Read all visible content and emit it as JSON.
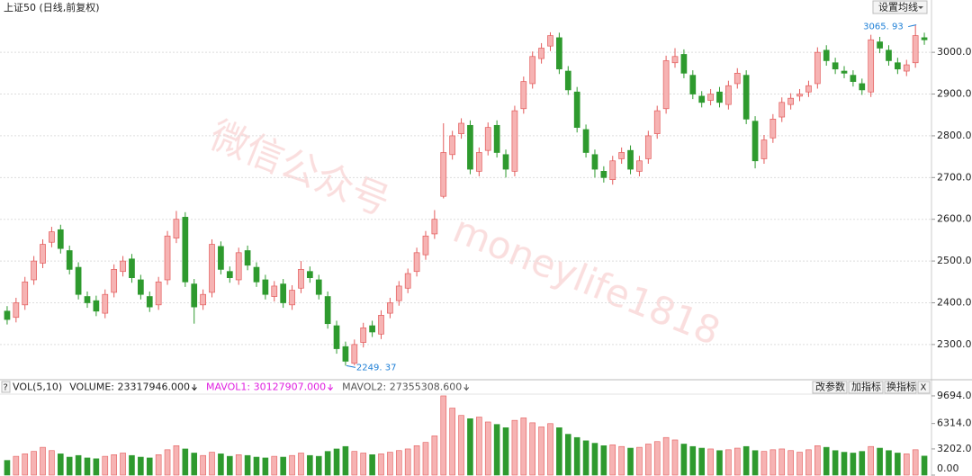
{
  "ui": {
    "ma_button": "设置均线",
    "buttons": [
      "改参数",
      "加指标",
      "换指标"
    ],
    "close": "X",
    "help": "?",
    "watermark": [
      "微信公众号",
      "moneylife1818"
    ]
  },
  "chart_data": [
    {
      "type": "candlestick",
      "title": "上证50 (日线,前复权)",
      "up_color": "#e35b5b",
      "down_color": "#2e9a2e",
      "grid": true,
      "ylim": [
        2220,
        3093
      ],
      "yticks": [
        {
          "value": 2300,
          "label": "2300.00"
        },
        {
          "value": 2400,
          "label": "2400.00"
        },
        {
          "value": 2500,
          "label": "2500.00"
        },
        {
          "value": 2600,
          "label": "2600.00"
        },
        {
          "value": 2700,
          "label": "2700.00"
        },
        {
          "value": 2800,
          "label": "2800.00"
        },
        {
          "value": 2900,
          "label": "2900.00"
        },
        {
          "value": 3000,
          "label": "3000.00"
        }
      ],
      "annotations": [
        {
          "text": "2249. 37",
          "value": 2249.37
        },
        {
          "text": "3065. 93",
          "value": 3065.93
        }
      ],
      "open": [
        2380,
        2365,
        2395,
        2455,
        2495,
        2545,
        2575,
        2525,
        2485,
        2415,
        2405,
        2375,
        2425,
        2475,
        2505,
        2455,
        2415,
        2395,
        2455,
        2555,
        2605,
        2445,
        2395,
        2425,
        2535,
        2475,
        2455,
        2525,
        2485,
        2455,
        2415,
        2445,
        2395,
        2435,
        2475,
        2455,
        2415,
        2345,
        2295,
        2255,
        2305,
        2345,
        2325,
        2375,
        2405,
        2435,
        2475,
        2515,
        2565,
        2655,
        2755,
        2805,
        2825,
        2715,
        2765,
        2825,
        2755,
        2715,
        2865,
        2925,
        2985,
        3015,
        3035,
        2955,
        2905,
        2815,
        2755,
        2715,
        2695,
        2745,
        2765,
        2715,
        2745,
        2805,
        2865,
        2975,
        2995,
        2945,
        2895,
        2885,
        2905,
        2875,
        2925,
        2945,
        2835,
        2745,
        2795,
        2845,
        2875,
        2895,
        2905,
        2925,
        3005,
        2975,
        2955,
        2945,
        2925,
        2905,
        3025,
        3005,
        2975,
        2955,
        2975,
        3035
      ],
      "high": [
        2392,
        2412,
        2462,
        2512,
        2552,
        2582,
        2587,
        2537,
        2497,
        2427,
        2417,
        2432,
        2492,
        2512,
        2517,
        2467,
        2427,
        2462,
        2572,
        2620,
        2617,
        2457,
        2432,
        2552,
        2547,
        2487,
        2532,
        2537,
        2497,
        2467,
        2452,
        2457,
        2442,
        2500,
        2487,
        2467,
        2427,
        2357,
        2307,
        2312,
        2352,
        2357,
        2382,
        2412,
        2452,
        2482,
        2532,
        2572,
        2622,
        2830,
        2812,
        2842,
        2837,
        2772,
        2832,
        2837,
        2767,
        2872,
        2942,
        3002,
        3022,
        3048,
        3047,
        2967,
        2917,
        2827,
        2767,
        2727,
        2752,
        2772,
        2777,
        2752,
        2812,
        2872,
        2992,
        3010,
        3007,
        2957,
        2907,
        2912,
        2917,
        2932,
        2962,
        2957,
        2847,
        2802,
        2852,
        2892,
        2902,
        2912,
        2932,
        3012,
        3017,
        2987,
        2967,
        2957,
        2937,
        3042,
        3037,
        3017,
        2987,
        2982,
        3065.93,
        3047
      ],
      "low": [
        2348,
        2353,
        2383,
        2443,
        2483,
        2533,
        2518,
        2468,
        2408,
        2388,
        2368,
        2363,
        2413,
        2463,
        2448,
        2408,
        2378,
        2383,
        2443,
        2543,
        2438,
        2350,
        2383,
        2413,
        2468,
        2448,
        2443,
        2478,
        2438,
        2408,
        2403,
        2388,
        2383,
        2423,
        2448,
        2408,
        2338,
        2278,
        2249.37,
        2250,
        2293,
        2318,
        2313,
        2363,
        2393,
        2423,
        2463,
        2503,
        2553,
        2650,
        2743,
        2793,
        2708,
        2703,
        2753,
        2748,
        2700,
        2703,
        2853,
        2913,
        2973,
        3003,
        2948,
        2898,
        2808,
        2748,
        2700,
        2688,
        2683,
        2733,
        2708,
        2703,
        2733,
        2793,
        2853,
        2963,
        2938,
        2888,
        2868,
        2873,
        2868,
        2863,
        2913,
        2828,
        2722,
        2733,
        2783,
        2833,
        2863,
        2883,
        2893,
        2913,
        2968,
        2948,
        2938,
        2918,
        2898,
        2893,
        2998,
        2968,
        2948,
        2943,
        2963,
        3018
      ],
      "close": [
        2360,
        2400,
        2450,
        2500,
        2540,
        2570,
        2530,
        2480,
        2420,
        2400,
        2380,
        2420,
        2480,
        2500,
        2460,
        2420,
        2390,
        2450,
        2560,
        2600,
        2450,
        2390,
        2420,
        2540,
        2480,
        2460,
        2520,
        2490,
        2450,
        2420,
        2440,
        2400,
        2430,
        2480,
        2460,
        2420,
        2350,
        2290,
        2260,
        2300,
        2340,
        2330,
        2370,
        2400,
        2440,
        2470,
        2520,
        2560,
        2600,
        2760,
        2800,
        2830,
        2720,
        2760,
        2820,
        2760,
        2720,
        2860,
        2930,
        2990,
        3010,
        3040,
        2960,
        2910,
        2820,
        2760,
        2720,
        2700,
        2740,
        2760,
        2720,
        2740,
        2800,
        2860,
        2980,
        2990,
        2950,
        2900,
        2880,
        2900,
        2880,
        2920,
        2950,
        2840,
        2740,
        2790,
        2840,
        2880,
        2890,
        2900,
        2920,
        3000,
        2980,
        2960,
        2950,
        2930,
        2910,
        3030,
        3010,
        2980,
        2960,
        2970,
        3040,
        3030
      ]
    },
    {
      "type": "bar",
      "title": "VOL(5,10)",
      "readouts": [
        {
          "text": "VOLUME: 23317946.000",
          "color": "#222222"
        },
        {
          "text": "MAVOL1: 30127907.000",
          "color": "#e020e0"
        },
        {
          "text": "MAVOL2: 27355308.600",
          "color": "#555555"
        }
      ],
      "ylim": [
        0,
        9910
      ],
      "yticks": [
        {
          "value": 0,
          "label": "0.00"
        },
        {
          "value": 3202,
          "label": "3202.00"
        },
        {
          "value": 6314,
          "label": "6314.00"
        },
        {
          "value": 9694,
          "label": "9694.00"
        }
      ],
      "values": [
        1800,
        2300,
        2600,
        2900,
        3400,
        3000,
        2600,
        2200,
        2400,
        2100,
        2000,
        2300,
        2500,
        2700,
        2400,
        2200,
        2100,
        2500,
        3100,
        3600,
        3200,
        2700,
        2400,
        2800,
        2600,
        2300,
        2500,
        2400,
        2200,
        2100,
        2300,
        2200,
        2400,
        2700,
        2400,
        2300,
        2900,
        3200,
        3500,
        2900,
        2700,
        2500,
        2600,
        2800,
        3000,
        3200,
        3600,
        4000,
        4800,
        9694,
        8200,
        7300,
        6900,
        7100,
        6500,
        6200,
        5800,
        6700,
        7000,
        6400,
        5900,
        6300,
        5800,
        5000,
        4600,
        4200,
        3900,
        3600,
        3700,
        3500,
        3300,
        3400,
        3800,
        4100,
        4600,
        4300,
        3800,
        3500,
        3300,
        3200,
        3000,
        3100,
        3300,
        3500,
        3000,
        2900,
        3100,
        3200,
        3000,
        2800,
        3100,
        3600,
        3400,
        3000,
        2800,
        2700,
        2900,
        3500,
        3300,
        3000,
        2700,
        2600,
        3100,
        2331.79
      ]
    }
  ]
}
